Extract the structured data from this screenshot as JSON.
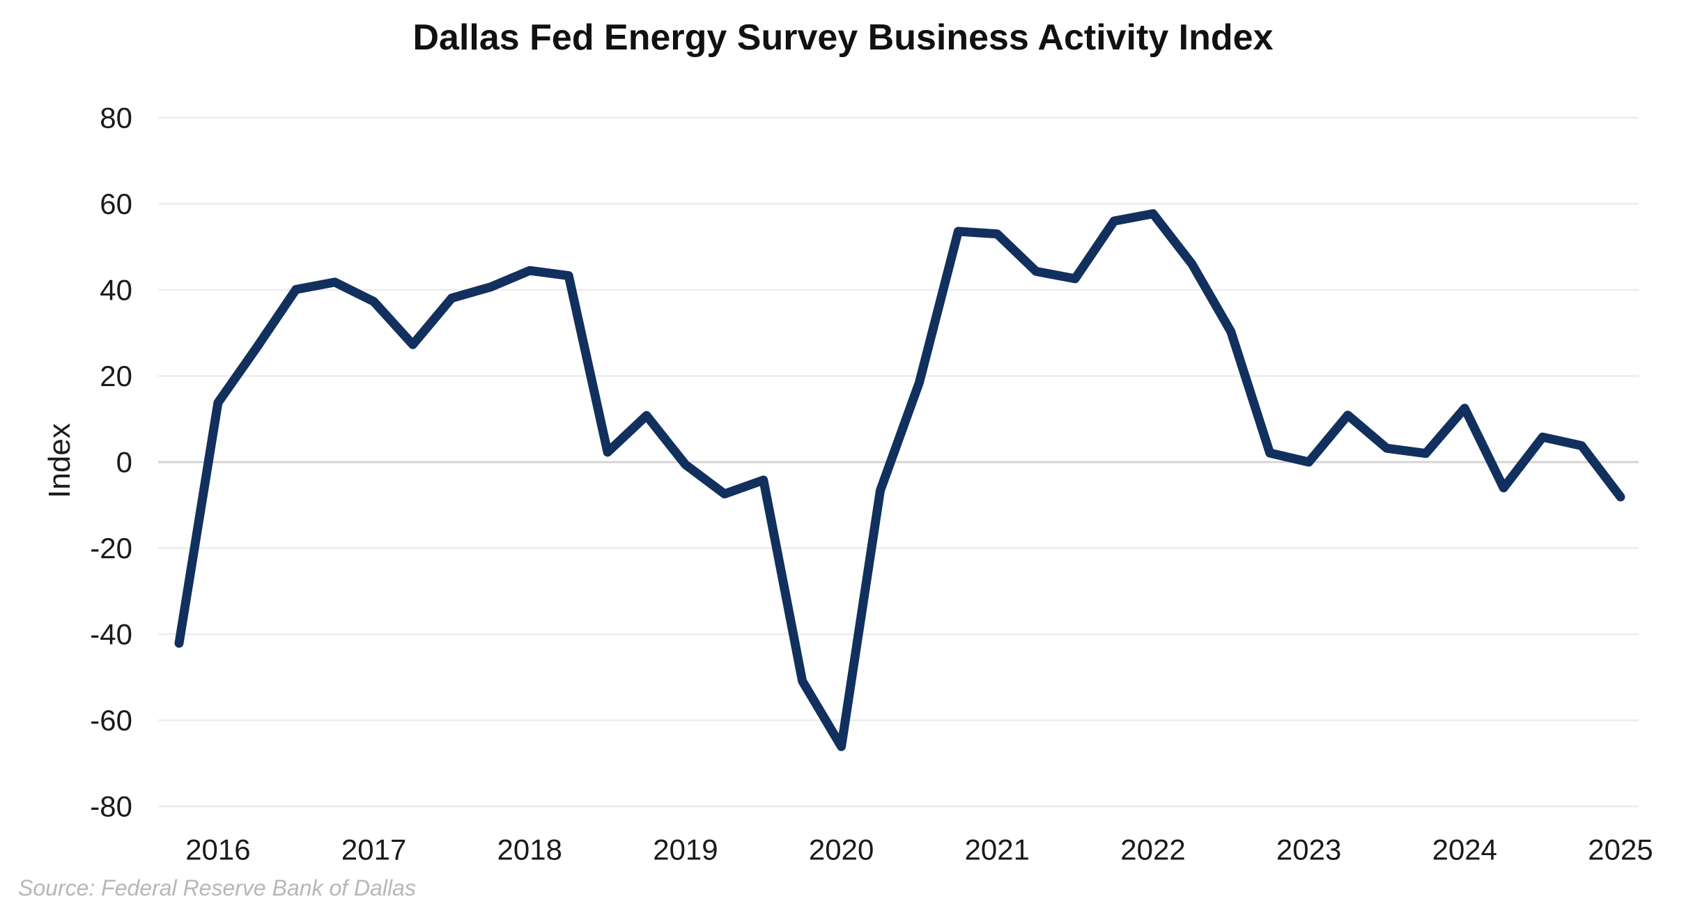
{
  "page": {
    "background_color": "#ffffff"
  },
  "chart_data": {
    "type": "line",
    "title": "Dallas Fed Energy Survey Business Activity Index",
    "ylabel": "Index",
    "xlabel": "",
    "source_note": "Source: Federal Reserve Bank of Dallas",
    "legend": "none",
    "grid": "horizontal",
    "ylim": [
      -80,
      80
    ],
    "y_ticks": [
      80,
      60,
      40,
      20,
      0,
      -20,
      -40,
      -60,
      -80
    ],
    "x_tick_labels": [
      "2016",
      "2017",
      "2018",
      "2019",
      "2020",
      "2021",
      "2022",
      "2023",
      "2024",
      "2025"
    ],
    "x": [
      "2016 Q1",
      "2016 Q2",
      "2016 Q3",
      "2016 Q4",
      "2017 Q1",
      "2017 Q2",
      "2017 Q3",
      "2017 Q4",
      "2018 Q1",
      "2018 Q2",
      "2018 Q3",
      "2018 Q4",
      "2019 Q1",
      "2019 Q2",
      "2019 Q3",
      "2019 Q4",
      "2020 Q1",
      "2020 Q2",
      "2020 Q3",
      "2020 Q4",
      "2021 Q1",
      "2021 Q2",
      "2021 Q3",
      "2021 Q4",
      "2022 Q1",
      "2022 Q2",
      "2022 Q3",
      "2022 Q4",
      "2023 Q1",
      "2023 Q2",
      "2023 Q3",
      "2023 Q4",
      "2024 Q1",
      "2024 Q2",
      "2024 Q3",
      "2024 Q4",
      "2025 Q1",
      "2025 Q2"
    ],
    "series": [
      {
        "name": "Business Activity Index",
        "color": "#12305e",
        "values": [
          -42.1,
          13.8,
          26.7,
          40.1,
          41.8,
          37.3,
          27.3,
          38.1,
          40.7,
          44.5,
          43.3,
          2.3,
          10.8,
          -0.6,
          -7.4,
          -4.2,
          -50.9,
          -66.1,
          -6.6,
          18.5,
          53.6,
          53.0,
          44.3,
          42.6,
          56.0,
          57.7,
          46.0,
          30.3,
          2.1,
          0.0,
          10.9,
          3.2,
          2.0,
          12.5,
          -6.0,
          5.8,
          3.8,
          -8.1
        ]
      }
    ],
    "colors": {
      "line": "#12305e",
      "gridline": "#ececec",
      "zero_line": "#d4d4d4",
      "tick_text": "#1a1a1a",
      "title_text": "#111111",
      "source_text": "#b7b7b7"
    }
  }
}
